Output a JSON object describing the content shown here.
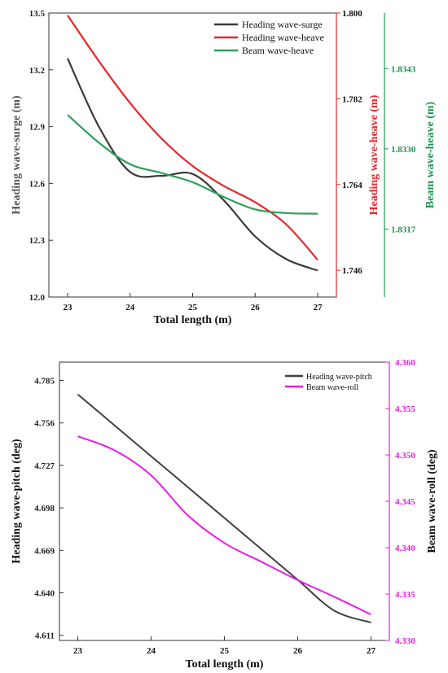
{
  "chart_data": [
    {
      "type": "line",
      "xlabel": "Total length (m)",
      "xlim": [
        22.7,
        27.3
      ],
      "xticks": [
        23,
        24,
        25,
        26,
        27
      ],
      "x": [
        23,
        23.5,
        24,
        24.5,
        25,
        25.5,
        26,
        26.5,
        27
      ],
      "axes": [
        {
          "label": "Heading wave-surge (m)",
          "position": "left",
          "color": "#333333",
          "lim": [
            12.0,
            13.5
          ],
          "ticks": [
            "12.0",
            "12.3",
            "12.6",
            "12.9",
            "13.2",
            "13.5"
          ]
        },
        {
          "label": "Heading wave-heave (m)",
          "position": "right",
          "color": "#e8262a",
          "lim": [
            1.7404,
            1.8
          ],
          "ticks": [
            "1.746",
            "1.764",
            "1.782",
            "1.800"
          ]
        },
        {
          "label": "Beam wave-heave (m)",
          "position": "right-outer",
          "color": "#1e9450",
          "lim": [
            1.8306,
            1.8352
          ],
          "ticks": [
            "1.8317",
            "1.8330",
            "1.8343"
          ]
        }
      ],
      "series": [
        {
          "name": "Heading wave-surge",
          "axis": 0,
          "color": "#3a3a3a",
          "values": [
            13.26,
            12.9,
            12.66,
            12.64,
            12.65,
            12.51,
            12.32,
            12.2,
            12.14
          ]
        },
        {
          "name": "Heading wave-heave",
          "axis": 1,
          "color": "#e8262a",
          "values": [
            1.7995,
            1.7899,
            1.7811,
            1.7737,
            1.7679,
            1.7637,
            1.7603,
            1.7556,
            1.7482
          ]
        },
        {
          "name": "Beam wave-heave",
          "axis": 2,
          "color": "#2e9e5a",
          "values": [
            1.83355,
            1.8331,
            1.83275,
            1.83261,
            1.83246,
            1.83222,
            1.83202,
            1.83196,
            1.83195
          ]
        }
      ],
      "legend": "top-right"
    },
    {
      "type": "line",
      "xlabel": "Total length (m)",
      "xlim": [
        22.75,
        27.25
      ],
      "xticks": [
        23,
        24,
        25,
        26,
        27
      ],
      "x": [
        23,
        23.5,
        24,
        24.5,
        25,
        25.5,
        26,
        26.5,
        27
      ],
      "axes": [
        {
          "label": "Heading wave-pitch (deg)",
          "position": "left",
          "color": "#000000",
          "lim": [
            4.6075,
            4.7975
          ],
          "ticks": [
            "4.611",
            "4.640",
            "4.669",
            "4.698",
            "4.727",
            "4.756",
            "4.785"
          ]
        },
        {
          "label": "Beam wave-roll (deg)",
          "position": "right",
          "color": "#e81ce8",
          "lim": [
            4.33,
            4.36
          ],
          "ticks": [
            "4.330",
            "4.335",
            "4.340",
            "4.345",
            "4.350",
            "4.355",
            "4.360"
          ]
        }
      ],
      "series": [
        {
          "name": "Heading wave-pitch",
          "axis": 0,
          "color": "#404040",
          "values": [
            4.7755,
            4.7544,
            4.7333,
            4.7122,
            4.6911,
            4.67,
            4.6489,
            4.6278,
            4.6197
          ]
        },
        {
          "name": "Beam wave-roll",
          "axis": 1,
          "color": "#e81ce8",
          "values": [
            4.352,
            4.3505,
            4.3478,
            4.3435,
            4.3405,
            4.3385,
            4.3365,
            4.3347,
            4.3328
          ]
        }
      ],
      "legend": "top-right"
    }
  ]
}
